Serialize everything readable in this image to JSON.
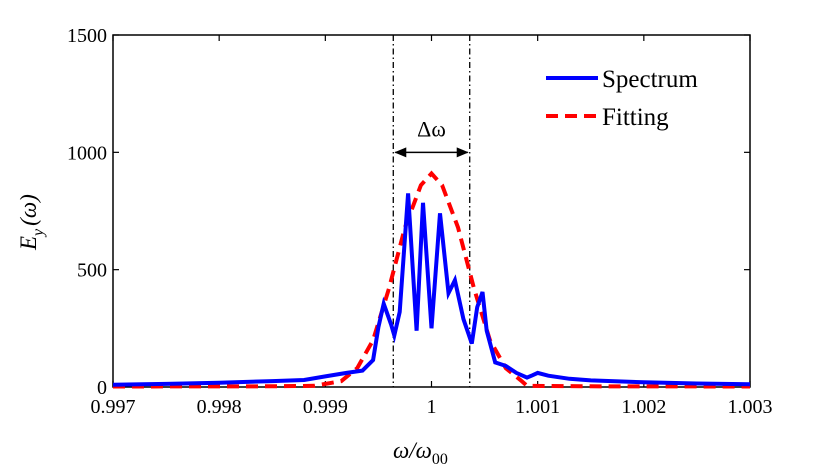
{
  "chart_data": {
    "type": "line",
    "title": "",
    "xlabel": "ω/ω",
    "xlabel_sub": "00",
    "ylabel": "E",
    "ylabel_sub": "y",
    "ylabel_suffix": "(ω)",
    "xlim": [
      0.997,
      1.003
    ],
    "ylim": [
      0,
      1500
    ],
    "xticks": [
      0.997,
      0.998,
      0.999,
      1,
      1.001,
      1.002,
      1.003
    ],
    "xtick_labels": [
      "0.997",
      "0.998",
      "0.999",
      "1",
      "1.001",
      "1.002",
      "1.003"
    ],
    "yticks": [
      0,
      500,
      1000,
      1500
    ],
    "ytick_labels": [
      "0",
      "500",
      "1000",
      "1500"
    ],
    "legend_position": "top-right",
    "vlines": [
      0.99964,
      1.00036
    ],
    "annotation": {
      "text": "Δω",
      "from": 0.99964,
      "to": 1.00036,
      "y": 1000
    },
    "series": [
      {
        "name": "Spectrum",
        "color": "#0000ff",
        "style": "solid",
        "x": [
          0.997,
          0.9975,
          0.998,
          0.9985,
          0.9988,
          0.999,
          0.9992,
          0.99935,
          0.99945,
          0.9995,
          0.99955,
          0.99962,
          0.99965,
          0.9997,
          0.99978,
          0.99986,
          0.99992,
          1.0,
          1.00008,
          1.00016,
          1.00022,
          1.0003,
          1.00038,
          1.00043,
          1.00048,
          1.00052,
          1.0006,
          1.0007,
          1.0008,
          1.0009,
          1.00095,
          1.001,
          1.0011,
          1.0013,
          1.0015,
          1.002,
          1.0025,
          1.003
        ],
        "values": [
          10,
          13,
          18,
          25,
          30,
          45,
          60,
          70,
          115,
          255,
          355,
          265,
          220,
          320,
          825,
          240,
          785,
          250,
          740,
          400,
          455,
          290,
          185,
          340,
          405,
          240,
          105,
          90,
          60,
          40,
          50,
          60,
          48,
          35,
          28,
          20,
          15,
          12
        ]
      },
      {
        "name": "Fitting",
        "color": "#ff0000",
        "style": "dashed",
        "x": [
          0.997,
          0.9985,
          0.9989,
          0.99915,
          0.9993,
          0.99945,
          0.9996,
          0.99975,
          0.9999,
          1.0,
          1.0001,
          1.00025,
          1.0004,
          1.00055,
          1.0007,
          1.00085,
          1.0009,
          1.0015,
          1.003
        ],
        "values": [
          2,
          3,
          5,
          25,
          80,
          200,
          420,
          680,
          860,
          910,
          860,
          680,
          420,
          200,
          80,
          25,
          5,
          3,
          2
        ]
      }
    ]
  }
}
